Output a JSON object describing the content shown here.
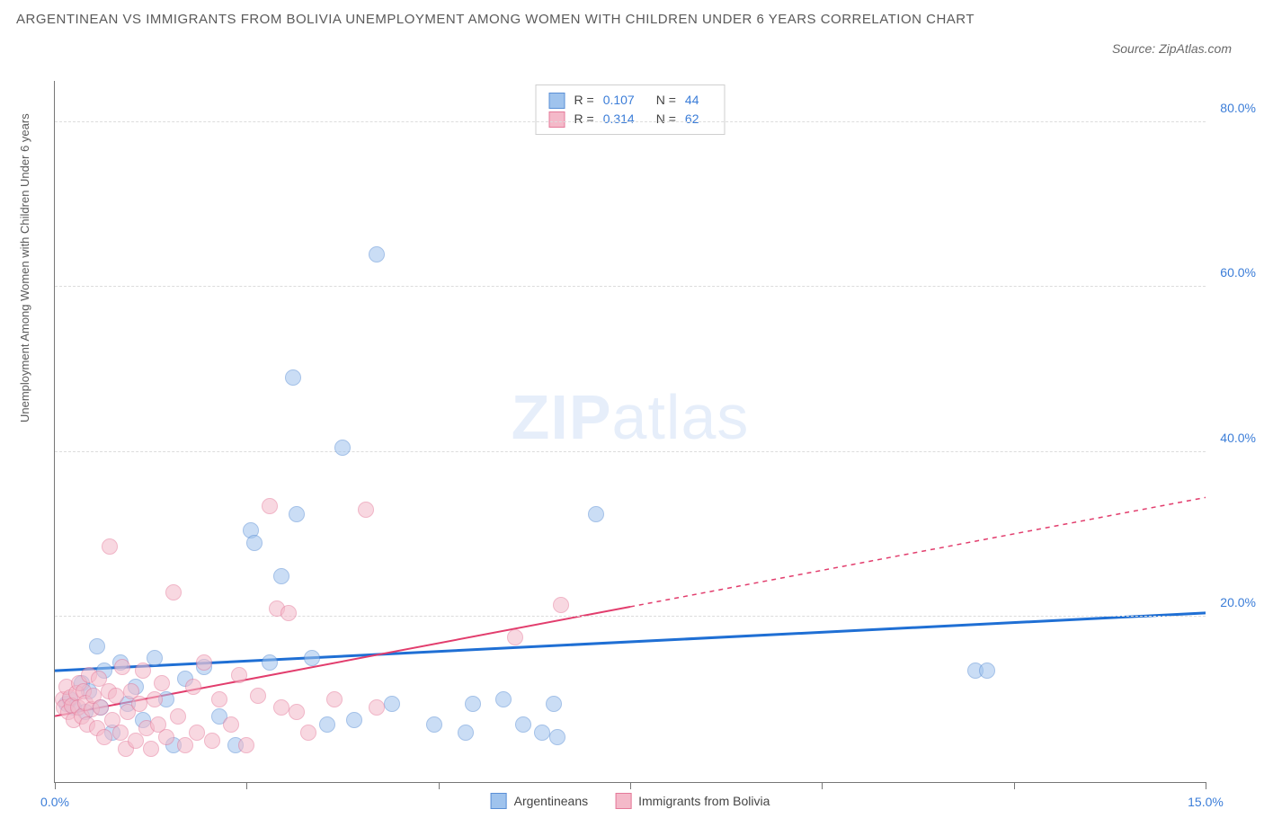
{
  "title": "ARGENTINEAN VS IMMIGRANTS FROM BOLIVIA UNEMPLOYMENT AMONG WOMEN WITH CHILDREN UNDER 6 YEARS CORRELATION CHART",
  "source": "Source: ZipAtlas.com",
  "y_axis_label": "Unemployment Among Women with Children Under 6 years",
  "watermark_bold": "ZIP",
  "watermark_light": "atlas",
  "chart": {
    "type": "scatter",
    "background_color": "#ffffff",
    "grid_color": "#dcdcdc",
    "grid_dash": true,
    "axis_color": "#777777",
    "tick_label_color": "#3b7dd8",
    "tick_label_fontsize": 14,
    "xlim": [
      0,
      15
    ],
    "ylim": [
      0,
      85
    ],
    "x_ticks": [
      0,
      2.5,
      5,
      7.5,
      10,
      12.5,
      15
    ],
    "x_tick_labels": {
      "0": "0.0%",
      "15": "15.0%"
    },
    "y_ticks": [
      20,
      40,
      60,
      80
    ],
    "y_tick_labels": {
      "20": "20.0%",
      "40": "40.0%",
      "60": "60.0%",
      "80": "80.0%"
    },
    "point_radius": 9,
    "point_opacity": 0.55,
    "series": [
      {
        "key": "argentineans",
        "label": "Argentineans",
        "fill_color": "#9fc3ed",
        "stroke_color": "#5a8fd6",
        "trend_color": "#1f6fd4",
        "trend_width": 3,
        "r_value": "0.107",
        "n_value": "44",
        "trend": {
          "x1": 0,
          "y1": 13.5,
          "x2": 15,
          "y2": 20.5,
          "x_solid_end": 15
        },
        "points": [
          [
            0.15,
            9.5
          ],
          [
            0.2,
            10.0
          ],
          [
            0.25,
            9.0
          ],
          [
            0.35,
            12.0
          ],
          [
            0.4,
            8.5
          ],
          [
            0.45,
            11.0
          ],
          [
            0.55,
            16.5
          ],
          [
            0.6,
            9.0
          ],
          [
            0.65,
            13.5
          ],
          [
            0.75,
            6.0
          ],
          [
            0.85,
            14.5
          ],
          [
            0.95,
            9.5
          ],
          [
            1.05,
            11.5
          ],
          [
            1.15,
            7.5
          ],
          [
            1.3,
            15.0
          ],
          [
            1.45,
            10.0
          ],
          [
            1.55,
            4.5
          ],
          [
            1.7,
            12.5
          ],
          [
            1.95,
            14.0
          ],
          [
            2.15,
            8.0
          ],
          [
            2.35,
            4.5
          ],
          [
            2.55,
            30.5
          ],
          [
            2.6,
            29.0
          ],
          [
            2.8,
            14.5
          ],
          [
            2.95,
            25.0
          ],
          [
            3.1,
            49.0
          ],
          [
            3.15,
            32.5
          ],
          [
            3.35,
            15.0
          ],
          [
            3.55,
            7.0
          ],
          [
            3.75,
            40.5
          ],
          [
            3.9,
            7.5
          ],
          [
            4.2,
            64.0
          ],
          [
            4.4,
            9.5
          ],
          [
            4.95,
            7.0
          ],
          [
            5.35,
            6.0
          ],
          [
            5.45,
            9.5
          ],
          [
            5.85,
            10.0
          ],
          [
            6.1,
            7.0
          ],
          [
            6.35,
            6.0
          ],
          [
            6.5,
            9.5
          ],
          [
            6.55,
            5.5
          ],
          [
            7.05,
            32.5
          ],
          [
            12.0,
            13.5
          ],
          [
            12.15,
            13.5
          ]
        ]
      },
      {
        "key": "bolivia",
        "label": "Immigrants from Bolivia",
        "fill_color": "#f4b9c9",
        "stroke_color": "#e57a9a",
        "trend_color": "#e23d6d",
        "trend_width": 2,
        "r_value": "0.314",
        "n_value": "62",
        "trend": {
          "x1": 0,
          "y1": 8.0,
          "x2": 15,
          "y2": 34.5,
          "x_solid_end": 7.5
        },
        "points": [
          [
            0.1,
            10.0
          ],
          [
            0.12,
            9.0
          ],
          [
            0.15,
            11.5
          ],
          [
            0.18,
            8.5
          ],
          [
            0.2,
            10.2
          ],
          [
            0.22,
            9.3
          ],
          [
            0.25,
            7.5
          ],
          [
            0.28,
            10.8
          ],
          [
            0.3,
            9.0
          ],
          [
            0.32,
            12.0
          ],
          [
            0.35,
            8.0
          ],
          [
            0.38,
            11.0
          ],
          [
            0.4,
            9.6
          ],
          [
            0.42,
            7.0
          ],
          [
            0.45,
            13.0
          ],
          [
            0.48,
            8.8
          ],
          [
            0.5,
            10.5
          ],
          [
            0.55,
            6.5
          ],
          [
            0.58,
            12.5
          ],
          [
            0.6,
            9.0
          ],
          [
            0.65,
            5.5
          ],
          [
            0.7,
            11.0
          ],
          [
            0.72,
            28.5
          ],
          [
            0.75,
            7.5
          ],
          [
            0.8,
            10.5
          ],
          [
            0.85,
            6.0
          ],
          [
            0.88,
            14.0
          ],
          [
            0.92,
            4.0
          ],
          [
            0.95,
            8.5
          ],
          [
            1.0,
            11.0
          ],
          [
            1.05,
            5.0
          ],
          [
            1.1,
            9.5
          ],
          [
            1.15,
            13.5
          ],
          [
            1.2,
            6.5
          ],
          [
            1.25,
            4.0
          ],
          [
            1.3,
            10.0
          ],
          [
            1.35,
            7.0
          ],
          [
            1.4,
            12.0
          ],
          [
            1.45,
            5.5
          ],
          [
            1.55,
            23.0
          ],
          [
            1.6,
            8.0
          ],
          [
            1.7,
            4.5
          ],
          [
            1.8,
            11.5
          ],
          [
            1.85,
            6.0
          ],
          [
            1.95,
            14.5
          ],
          [
            2.05,
            5.0
          ],
          [
            2.15,
            10.0
          ],
          [
            2.3,
            7.0
          ],
          [
            2.4,
            13.0
          ],
          [
            2.5,
            4.5
          ],
          [
            2.65,
            10.5
          ],
          [
            2.8,
            33.5
          ],
          [
            2.9,
            21.0
          ],
          [
            2.95,
            9.0
          ],
          [
            3.05,
            20.5
          ],
          [
            3.15,
            8.5
          ],
          [
            3.3,
            6.0
          ],
          [
            3.65,
            10.0
          ],
          [
            4.05,
            33.0
          ],
          [
            4.2,
            9.0
          ],
          [
            6.0,
            17.5
          ],
          [
            6.6,
            21.5
          ]
        ]
      }
    ]
  },
  "legend_top": {
    "r_label": "R =",
    "n_label": "N ="
  }
}
